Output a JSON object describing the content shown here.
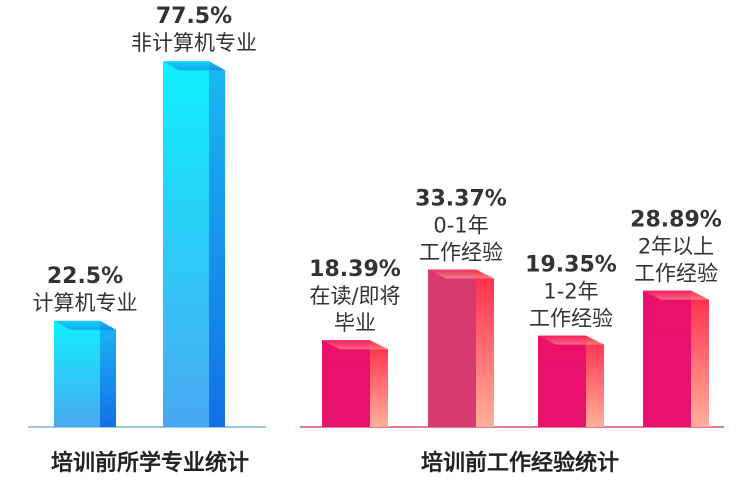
{
  "chart_data": [
    {
      "type": "bar",
      "title": "培训前所学专业统计",
      "categories": [
        [
          "计算机专业"
        ],
        [
          "非计算机专业"
        ]
      ],
      "values": [
        22.5,
        77.5
      ],
      "value_labels": [
        "22.5%",
        "77.5%"
      ],
      "ylim": [
        0,
        100
      ],
      "grid": false,
      "colors": {
        "top": "#0ff0ff",
        "front_bottom": "#4aa8f0",
        "side": "#1370e6",
        "baseline": "#7fb3d9"
      }
    },
    {
      "type": "bar",
      "title": "培训前工作经验统计",
      "categories": [
        [
          "在读/即将",
          "毕业"
        ],
        [
          "0-1年",
          "工作经验"
        ],
        [
          "1-2年",
          "工作经验"
        ],
        [
          "2年以上",
          "工作经验"
        ]
      ],
      "values": [
        18.39,
        33.37,
        19.35,
        28.89
      ],
      "value_labels": [
        "18.39%",
        "33.37%",
        "19.35%",
        "28.89%"
      ],
      "ylim": [
        0,
        100
      ],
      "grid": false,
      "colors": {
        "front": "#e8126e",
        "front_highlight": "#d63a70",
        "side_top": "#ff2a4a",
        "side_bottom": "#ffb09a",
        "baseline": "#e05070"
      }
    }
  ]
}
